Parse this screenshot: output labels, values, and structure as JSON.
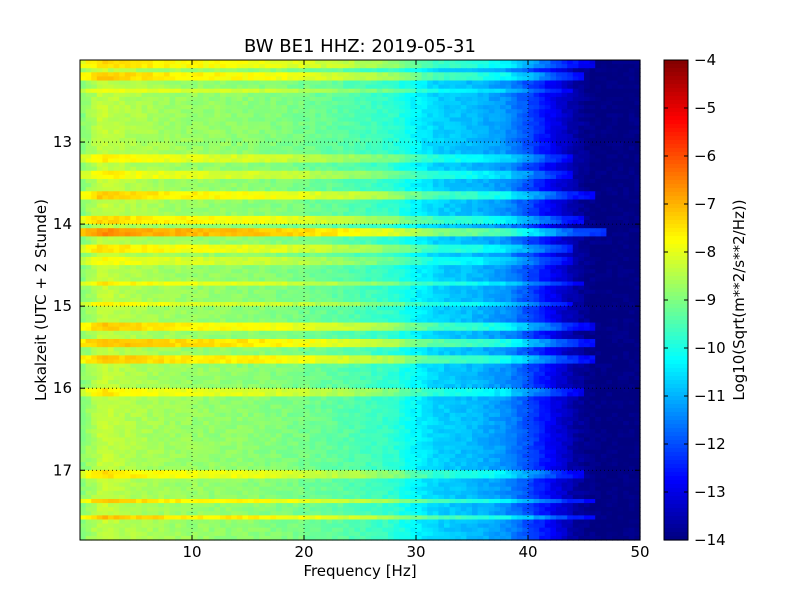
{
  "chart_data": {
    "type": "heatmap",
    "title": "BW BE1 HHZ: 2019-05-31",
    "xlabel": "Frequency [Hz]",
    "ylabel": "Lokalzeit (UTC + 2 Stunde)",
    "colorbar_label": "Log10(Sqrt(m**2/s**2/Hz))",
    "colormap": "jet",
    "xlim": [
      0,
      50
    ],
    "ylim": [
      12.0,
      17.85
    ],
    "y_inverted": true,
    "x_ticks": [
      10,
      20,
      30,
      40,
      50
    ],
    "x_tick_labels": [
      "10",
      "20",
      "30",
      "40",
      "50"
    ],
    "y_ticks": [
      13,
      14,
      15,
      16,
      17
    ],
    "y_tick_labels": [
      "13",
      "14",
      "15",
      "16",
      "17"
    ],
    "clim": [
      -14,
      -4
    ],
    "colorbar_ticks": [
      -4,
      -5,
      -6,
      -7,
      -8,
      -9,
      -10,
      -11,
      -12,
      -13,
      -14
    ],
    "colorbar_tick_labels": [
      "−4",
      "−5",
      "−6",
      "−7",
      "−8",
      "−9",
      "−10",
      "−11",
      "−12",
      "−13",
      "−14"
    ],
    "grid": true,
    "grid_style": "dotted",
    "profile_freq_hz": [
      0,
      2,
      4,
      8,
      12,
      16,
      20,
      24,
      28,
      30,
      32,
      35,
      38,
      40,
      42,
      44,
      46,
      50
    ],
    "profile_log_amplitude": [
      -9.0,
      -8.3,
      -8.5,
      -8.7,
      -8.8,
      -8.9,
      -9.1,
      -9.4,
      -9.8,
      -10.3,
      -10.7,
      -10.9,
      -11.3,
      -12.0,
      -12.8,
      -13.6,
      -14.0,
      -14.0
    ],
    "bright_bands": [
      {
        "time": 12.05,
        "boost": 1.0,
        "fmax": 46
      },
      {
        "time": 12.2,
        "boost": 1.1,
        "fmax": 45
      },
      {
        "time": 12.38,
        "boost": 0.6,
        "fmax": 44
      },
      {
        "time": 13.2,
        "boost": 0.7,
        "fmax": 44
      },
      {
        "time": 13.4,
        "boost": 0.7,
        "fmax": 44
      },
      {
        "time": 13.65,
        "boost": 1.1,
        "fmax": 46
      },
      {
        "time": 13.95,
        "boost": 1.0,
        "fmax": 45
      },
      {
        "time": 14.1,
        "boost": 1.7,
        "fmax": 47
      },
      {
        "time": 14.3,
        "boost": 0.9,
        "fmax": 44
      },
      {
        "time": 14.45,
        "boost": 0.6,
        "fmax": 44
      },
      {
        "time": 14.72,
        "boost": 0.8,
        "fmax": 45
      },
      {
        "time": 14.97,
        "boost": 0.7,
        "fmax": 44
      },
      {
        "time": 15.25,
        "boost": 1.1,
        "fmax": 46
      },
      {
        "time": 15.45,
        "boost": 1.3,
        "fmax": 46
      },
      {
        "time": 15.65,
        "boost": 1.2,
        "fmax": 46
      },
      {
        "time": 16.05,
        "boost": 0.8,
        "fmax": 45
      },
      {
        "time": 17.05,
        "boost": 0.9,
        "fmax": 45
      },
      {
        "time": 17.38,
        "boost": 1.1,
        "fmax": 46
      },
      {
        "time": 17.58,
        "boost": 1.2,
        "fmax": 46
      }
    ]
  }
}
